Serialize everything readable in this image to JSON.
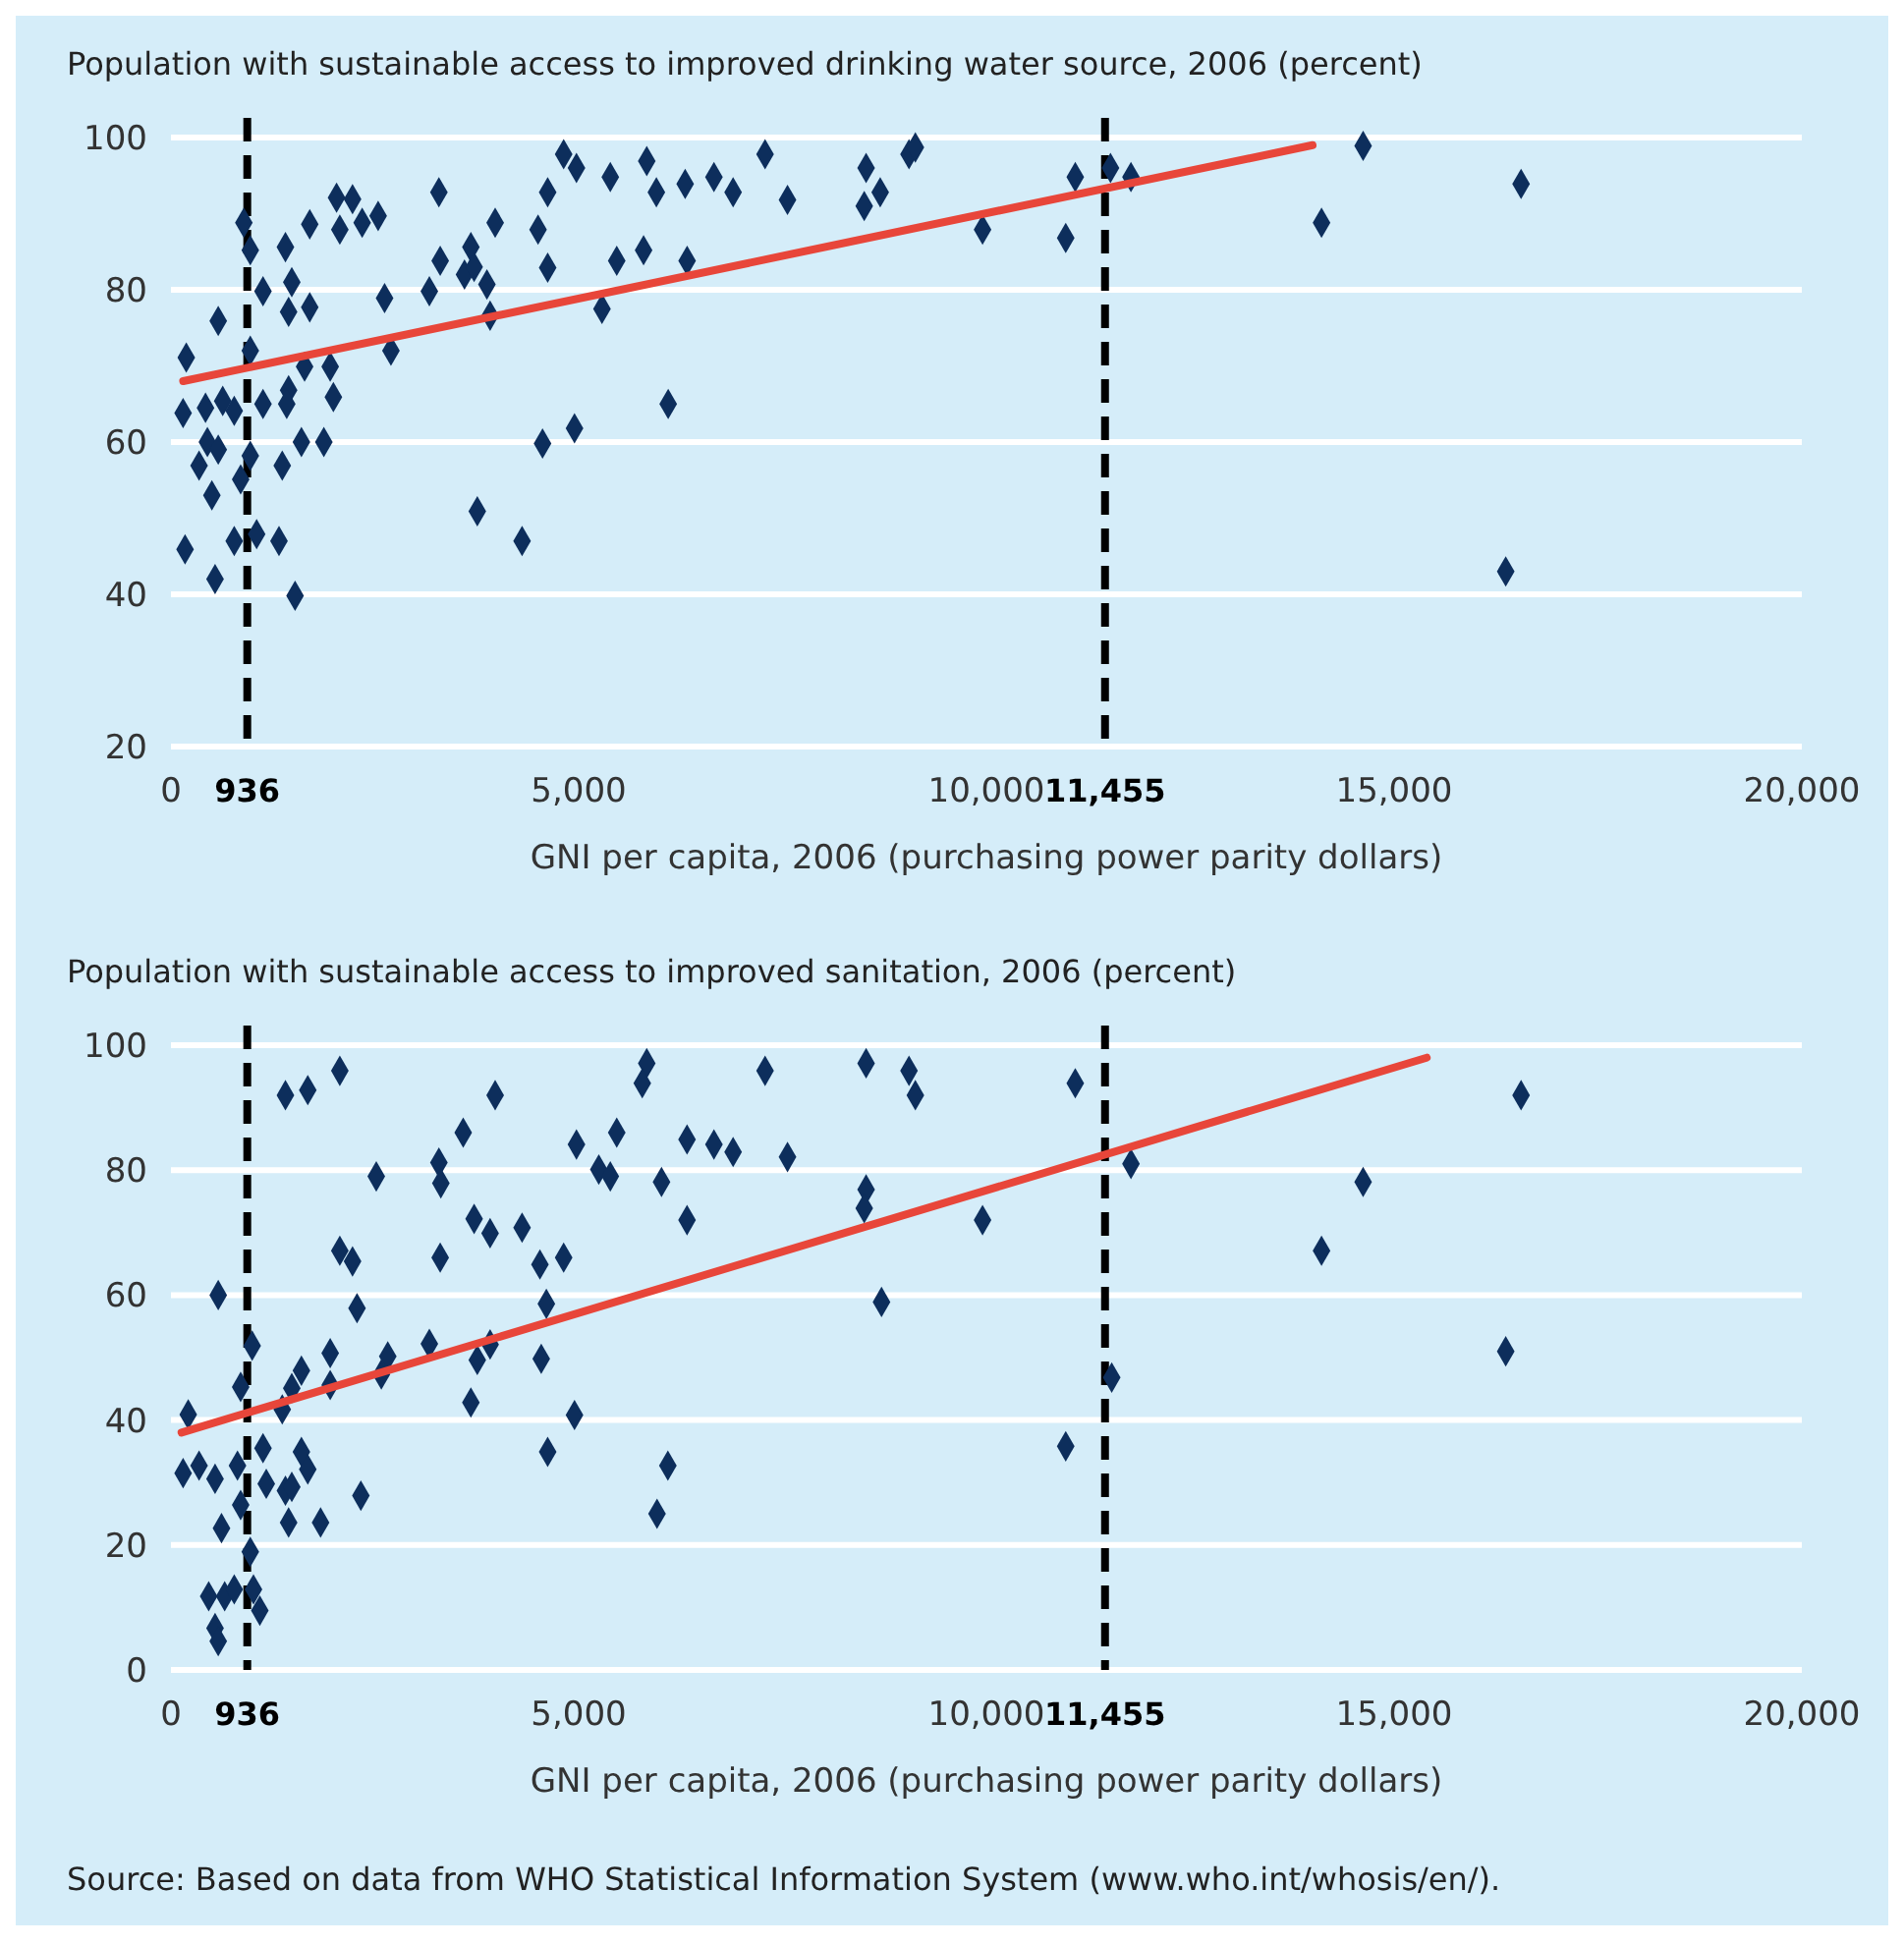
{
  "chart_data": [
    {
      "type": "scatter",
      "title": "Population with sustainable access to improved drinking water source, 2006 (percent)",
      "xlabel": "GNI per capita, 2006 (purchasing power parity dollars)",
      "xlim": [
        0,
        20000
      ],
      "xticks": [
        0,
        {
          "value": 5000,
          "label": "5,000"
        },
        {
          "value": 10000,
          "label": "10,000"
        },
        {
          "value": 15000,
          "label": "15,000"
        },
        {
          "value": 20000,
          "label": "20,000"
        }
      ],
      "ylim": [
        20,
        100
      ],
      "yticks": [
        20,
        40,
        60,
        80,
        100
      ],
      "grid": "y",
      "ref_lines": [
        {
          "axis": "x",
          "value": 936,
          "label": "936",
          "color": "#000000",
          "line_style": "dashed"
        },
        {
          "axis": "x",
          "value": 11455,
          "label": "11,455",
          "color": "#000000",
          "line_style": "dashed"
        }
      ],
      "series": [
        {
          "color": "#0d2e5c",
          "marker": "diamond",
          "x": [
            188,
            149,
            173,
            541,
            345,
            502,
            424,
            635,
            776,
            580,
            447,
            580,
            894,
            973,
            1129,
            973,
            1129,
            973,
            855,
            776,
            1051,
            1325,
            1522,
            1365,
            1404,
            1482,
            1443,
            1443,
            1420,
            1702,
            1702,
            1639,
            1600,
            1875,
            1953,
            1992,
            2031,
            2071,
            2227,
            2345,
            2541,
            2620,
            2698,
            3286,
            3169,
            3302,
            3600,
            3678,
            3718,
            3875,
            3914,
            3976,
            3757,
            4306,
            4502,
            4620,
            4620,
            4557,
            4816,
            4973,
            4949,
            5388,
            5286,
            5467,
            5835,
            5953,
            5796,
            6098,
            6306,
            6330,
            6659,
            6894,
            7286,
            7561,
            8525,
            8502,
            8698,
            9051,
            9129,
            9953,
            10973,
            11090,
            11522,
            11773,
            14110,
            14620,
            16557,
            16369
          ],
          "values": [
            71.1,
            63.8,
            45.9,
            42,
            56.9,
            53,
            64.5,
            65.4,
            64.1,
            75.9,
            60,
            59,
            88.8,
            85.2,
            79.8,
            72,
            65,
            58.2,
            55.1,
            47,
            47.9,
            47,
            39.8,
            56.9,
            85.6,
            81,
            77.1,
            66.8,
            65,
            88.6,
            77.7,
            69.9,
            60,
            60,
            69.9,
            65.9,
            92.1,
            87.9,
            91.9,
            88.8,
            89.7,
            78.9,
            72,
            92.8,
            79.8,
            83.8,
            82,
            85.6,
            83,
            80.7,
            76.6,
            88.8,
            50.9,
            47,
            87.9,
            92.8,
            82.9,
            59.8,
            97.8,
            96,
            61.8,
            94.8,
            77.5,
            83.8,
            96.9,
            92.8,
            85.2,
            65,
            93.9,
            83.8,
            94.8,
            92.8,
            97.8,
            91.8,
            96,
            91,
            92.8,
            97.8,
            98.7,
            87.9,
            86.8,
            94.8,
            96,
            94.8,
            88.8,
            98.9,
            93.9,
            43
          ]
        },
        {
          "type": "line",
          "color": "#e8463a",
          "line_style": "solid",
          "x": [
            150,
            14000
          ],
          "values": [
            68,
            99
          ]
        }
      ]
    },
    {
      "type": "scatter",
      "title": "Population with sustainable access to improved sanitation, 2006 (percent)",
      "xlabel": "GNI per capita, 2006 (purchasing power parity dollars)",
      "xlim": [
        0,
        20000
      ],
      "xticks": [
        0,
        {
          "value": 5000,
          "label": "5,000"
        },
        {
          "value": 10000,
          "label": "10,000"
        },
        {
          "value": 15000,
          "label": "15,000"
        },
        {
          "value": 20000,
          "label": "20,000"
        }
      ],
      "ylim": [
        0,
        100
      ],
      "yticks": [
        0,
        20,
        40,
        60,
        80,
        100
      ],
      "grid": "y",
      "annotations": [
        "Source: Based on data from WHO Statistical Information System (www.who.int/whosis/en/)."
      ],
      "ref_lines": [
        {
          "axis": "x",
          "value": 936,
          "label": "936",
          "color": "#000000",
          "line_style": "dashed"
        },
        {
          "axis": "x",
          "value": 11455,
          "label": "11,455",
          "color": "#000000",
          "line_style": "dashed"
        }
      ],
      "series": [
        {
          "color": "#0d2e5c",
          "marker": "diamond",
          "x": [
            212,
            149,
            345,
            541,
            580,
            620,
            463,
            659,
            776,
            541,
            580,
            816,
            855,
            996,
            855,
            973,
            1012,
            1090,
            1129,
            1169,
            1404,
            1678,
            2071,
            1404,
            1482,
            1443,
            1600,
            1678,
            1365,
            1482,
            1600,
            1953,
            1953,
            1835,
            2071,
            2227,
            2282,
            2329,
            2518,
            2659,
            2580,
            3169,
            3286,
            3310,
            3302,
            3584,
            3678,
            3718,
            3914,
            3757,
            3914,
            3976,
            4306,
            4525,
            4604,
            4541,
            4816,
            4949,
            4620,
            4973,
            5247,
            5388,
            5467,
            5835,
            5780,
            6016,
            6094,
            5961,
            6329,
            6329,
            6659,
            6894,
            7286,
            7561,
            8525,
            8525,
            8502,
            9051,
            9129,
            8714,
            9953,
            10973,
            11090,
            11537,
            11773,
            14110,
            14620,
            16557,
            16369
          ],
          "values": [
            40.9,
            31.5,
            32.7,
            30.6,
            60,
            22.7,
            11.8,
            11.8,
            12.9,
            6.7,
            4.6,
            32.7,
            45.3,
            51.9,
            26.4,
            18.9,
            12.9,
            9.5,
            35.5,
            29.8,
            92,
            92.8,
            95.9,
            28.7,
            29.3,
            23.6,
            34.9,
            32.1,
            41.7,
            45.1,
            47.9,
            50.7,
            45.6,
            23.6,
            67.1,
            65.4,
            57.9,
            27.9,
            79,
            50.2,
            47.3,
            52.2,
            81.2,
            77.9,
            66,
            86,
            42.8,
            72.2,
            69.9,
            49.6,
            52.1,
            92,
            70.8,
            64.9,
            58.6,
            49.8,
            66,
            40.8,
            34.9,
            84.1,
            80.1,
            79,
            86,
            97.1,
            93.9,
            78.1,
            32.7,
            25,
            84.9,
            72,
            84.1,
            82.9,
            95.9,
            82.1,
            97.1,
            76.9,
            73.9,
            95.9,
            92,
            58.9,
            72,
            35.8,
            93.9,
            46.8,
            81,
            67.1,
            78.1,
            92,
            51
          ]
        },
        {
          "type": "line",
          "color": "#e8463a",
          "line_style": "solid",
          "x": [
            130,
            15400
          ],
          "values": [
            38,
            98
          ]
        }
      ]
    }
  ]
}
